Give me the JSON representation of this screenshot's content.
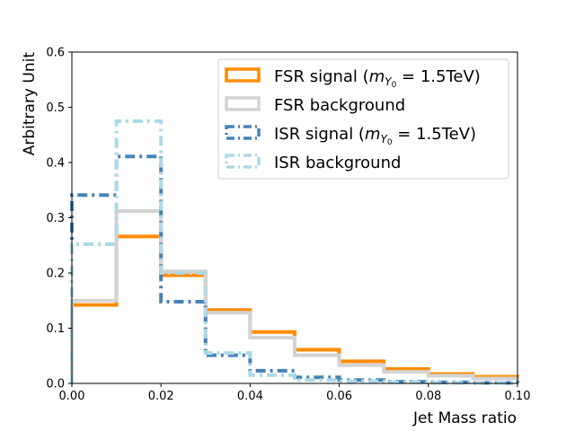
{
  "chart_data": {
    "type": "histogram-step",
    "title": "",
    "xlabel": "Jet Mass ratio",
    "ylabel": "Arbitrary Unit",
    "xlim": [
      0.0,
      0.1
    ],
    "ylim": [
      0.0,
      0.6
    ],
    "xticks": [
      "0.00",
      "0.02",
      "0.04",
      "0.06",
      "0.08",
      "0.10"
    ],
    "yticks": [
      "0.0",
      "0.1",
      "0.2",
      "0.3",
      "0.4",
      "0.5",
      "0.6"
    ],
    "grid": false,
    "legend_position": "top-right",
    "bin_edges": [
      0.0,
      0.01,
      0.02,
      0.03,
      0.04,
      0.05,
      0.06,
      0.07,
      0.08,
      0.09,
      0.1
    ],
    "series": [
      {
        "name": "FSR signal",
        "legend_prefix": "FSR signal (",
        "legend_math_m": "m",
        "legend_math_sub": "Y",
        "legend_math_subsub": "0",
        "legend_suffix": " = 1.5TeV)",
        "color": "#ff8c00",
        "style": "solid",
        "values": [
          0.142,
          0.266,
          0.196,
          0.133,
          0.093,
          0.061,
          0.04,
          0.026,
          0.017,
          0.012
        ]
      },
      {
        "name": "FSR background",
        "legend_label": "FSR background",
        "color": "#d3d3d3",
        "style": "solid",
        "values": [
          0.15,
          0.312,
          0.203,
          0.128,
          0.083,
          0.051,
          0.033,
          0.021,
          0.014,
          0.009
        ]
      },
      {
        "name": "ISR signal",
        "legend_prefix": "ISR signal (",
        "legend_math_m": "m",
        "legend_math_sub": "Y",
        "legend_math_subsub": "0",
        "legend_suffix": " = 1.5TeV)",
        "color": "#4682b4",
        "style": "dashdot",
        "values": [
          0.341,
          0.411,
          0.148,
          0.051,
          0.023,
          0.011,
          0.006,
          0.003,
          0.002,
          0.001
        ]
      },
      {
        "name": "ISR background",
        "legend_label": "ISR background",
        "color": "#add8e6",
        "style": "dashdot",
        "values": [
          0.252,
          0.475,
          0.2,
          0.055,
          0.015,
          0.006,
          0.004,
          0.002,
          0.001,
          0.001
        ]
      }
    ]
  }
}
